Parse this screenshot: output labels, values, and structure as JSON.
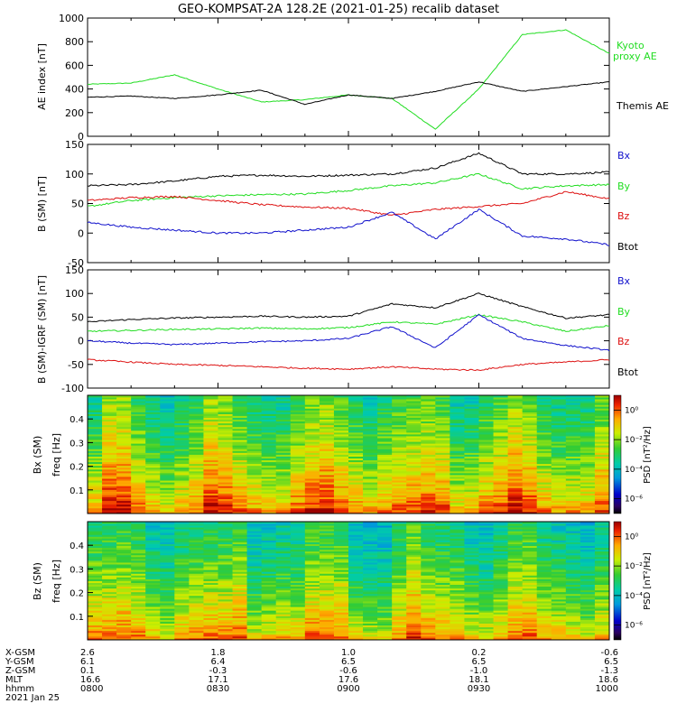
{
  "title": "GEO-KOMPSAT-2A 128.2E (2021-01-25) recalib dataset",
  "colors": {
    "black": "#000000",
    "green": "#22dd22",
    "red": "#dd1111",
    "blue": "#1111cc"
  },
  "panels": {
    "ae": {
      "ylabel": "AE index [nT]",
      "ylim": [
        0,
        1000
      ],
      "yticks": [
        "0",
        "200",
        "400",
        "600",
        "800",
        "1000"
      ],
      "legend": [
        {
          "text": "Kyoto",
          "color": "#22dd22"
        },
        {
          "text": "proxy AE",
          "color": "#22dd22"
        },
        {
          "text": "Themis AE",
          "color": "#000000"
        }
      ]
    },
    "b": {
      "ylabel": "B (SM) [nT]",
      "ylim": [
        -50,
        150
      ],
      "yticks": [
        "-50",
        "0",
        "50",
        "100",
        "150"
      ],
      "legend": [
        {
          "text": "Bx",
          "color": "#1111cc"
        },
        {
          "text": "By",
          "color": "#22dd22"
        },
        {
          "text": "Bz",
          "color": "#dd1111"
        },
        {
          "text": "Btot",
          "color": "#000000"
        }
      ]
    },
    "bigrf": {
      "ylabel": "B (SM)-IGRF (SM) [nT]",
      "ylim": [
        -100,
        150
      ],
      "yticks": [
        "-100",
        "-50",
        "0",
        "50",
        "100",
        "150"
      ],
      "legend": [
        {
          "text": "Bx",
          "color": "#1111cc"
        },
        {
          "text": "By",
          "color": "#22dd22"
        },
        {
          "text": "Bz",
          "color": "#dd1111"
        },
        {
          "text": "Btot",
          "color": "#000000"
        }
      ]
    },
    "bx_spec": {
      "ylabel1": "Bx (SM)",
      "ylabel2": "freq [Hz]",
      "yticks": [
        "0.1",
        "0.2",
        "0.3",
        "0.4"
      ]
    },
    "bz_spec": {
      "ylabel1": "Bz (SM)",
      "ylabel2": "freq [Hz]",
      "yticks": [
        "0.1",
        "0.2",
        "0.3",
        "0.4"
      ]
    },
    "colorbar": {
      "label": "PSD [nT²/Hz]",
      "ticks": [
        "10⁰",
        "10⁻²",
        "10⁻⁴",
        "10⁻⁶"
      ]
    }
  },
  "footer": {
    "row_labels": [
      "X-GSM",
      "Y-GSM",
      "Z-GSM",
      "MLT",
      "hhmm",
      "2021 Jan 25"
    ],
    "columns": [
      {
        "x": "2.6",
        "y": "6.1",
        "z": "0.1",
        "mlt": "16.6",
        "hhmm": "0800"
      },
      {
        "x": "1.8",
        "y": "6.4",
        "z": "-0.3",
        "mlt": "17.1",
        "hhmm": "0830"
      },
      {
        "x": "1.0",
        "y": "6.5",
        "z": "-0.6",
        "mlt": "17.6",
        "hhmm": "0900"
      },
      {
        "x": "0.2",
        "y": "6.5",
        "z": "-1.0",
        "mlt": "18.1",
        "hhmm": "0930"
      },
      {
        "x": "-0.6",
        "y": "6.5",
        "z": "-1.3",
        "mlt": "18.6",
        "hhmm": "1000"
      }
    ]
  },
  "chart_data": [
    {
      "type": "line",
      "title": "GEO-KOMPSAT-2A 128.2E (2021-01-25) recalib dataset",
      "xlabel": "hhmm",
      "x": [
        "0800",
        "0810",
        "0820",
        "0830",
        "0840",
        "0850",
        "0900",
        "0910",
        "0920",
        "0930",
        "0940",
        "0950",
        "1000"
      ],
      "ylabel": "AE index [nT]",
      "ylim": [
        0,
        1000
      ],
      "series": [
        {
          "name": "Kyoto proxy AE",
          "color": "#22dd22",
          "values": [
            440,
            450,
            520,
            400,
            290,
            310,
            350,
            320,
            60,
            400,
            860,
            900,
            700
          ]
        },
        {
          "name": "Themis AE",
          "color": "#000000",
          "values": [
            330,
            340,
            320,
            350,
            390,
            270,
            350,
            320,
            380,
            460,
            380,
            420,
            460
          ]
        }
      ]
    },
    {
      "type": "line",
      "xlabel": "hhmm",
      "x": [
        "0800",
        "0810",
        "0820",
        "0830",
        "0840",
        "0850",
        "0900",
        "0910",
        "0920",
        "0930",
        "0940",
        "0950",
        "1000"
      ],
      "ylabel": "B (SM) [nT]",
      "ylim": [
        -50,
        150
      ],
      "series": [
        {
          "name": "Btot",
          "color": "#000000",
          "values": [
            80,
            82,
            88,
            96,
            98,
            96,
            98,
            100,
            110,
            135,
            100,
            100,
            103
          ]
        },
        {
          "name": "By",
          "color": "#22dd22",
          "values": [
            45,
            55,
            60,
            63,
            65,
            66,
            72,
            80,
            85,
            100,
            75,
            80,
            82
          ]
        },
        {
          "name": "Bz",
          "color": "#dd1111",
          "values": [
            55,
            60,
            62,
            55,
            48,
            44,
            42,
            30,
            40,
            45,
            50,
            70,
            58
          ]
        },
        {
          "name": "Bx",
          "color": "#1111cc",
          "values": [
            18,
            10,
            5,
            0,
            0,
            5,
            10,
            35,
            -10,
            40,
            -5,
            -10,
            -20
          ]
        }
      ]
    },
    {
      "type": "line",
      "xlabel": "hhmm",
      "x": [
        "0800",
        "0810",
        "0820",
        "0830",
        "0840",
        "0850",
        "0900",
        "0910",
        "0920",
        "0930",
        "0940",
        "0950",
        "1000"
      ],
      "ylabel": "B (SM)-IGRF (SM) [nT]",
      "ylim": [
        -100,
        150
      ],
      "series": [
        {
          "name": "Btot",
          "color": "#000000",
          "values": [
            40,
            45,
            48,
            50,
            52,
            50,
            52,
            78,
            70,
            100,
            72,
            48,
            55
          ]
        },
        {
          "name": "By",
          "color": "#22dd22",
          "values": [
            20,
            22,
            24,
            25,
            27,
            25,
            28,
            40,
            35,
            55,
            40,
            20,
            32
          ]
        },
        {
          "name": "Bx",
          "color": "#1111cc",
          "values": [
            0,
            -5,
            -8,
            -5,
            -2,
            0,
            5,
            30,
            -15,
            55,
            5,
            -10,
            -20
          ]
        },
        {
          "name": "Bz",
          "color": "#dd1111",
          "values": [
            -40,
            -45,
            -50,
            -52,
            -55,
            -58,
            -60,
            -55,
            -60,
            -62,
            -50,
            -45,
            -40
          ]
        }
      ]
    },
    {
      "type": "heatmap",
      "ylabel": "Bx (SM) freq [Hz]",
      "ylim": [
        0,
        0.5
      ],
      "xlabel": "hhmm",
      "colorbar": {
        "label": "PSD [nT²/Hz]",
        "log10_range": [
          -7,
          1
        ]
      }
    },
    {
      "type": "heatmap",
      "ylabel": "Bz (SM) freq [Hz]",
      "ylim": [
        0,
        0.5
      ],
      "xlabel": "hhmm",
      "colorbar": {
        "label": "PSD [nT²/Hz]",
        "log10_range": [
          -7,
          1
        ]
      }
    }
  ]
}
